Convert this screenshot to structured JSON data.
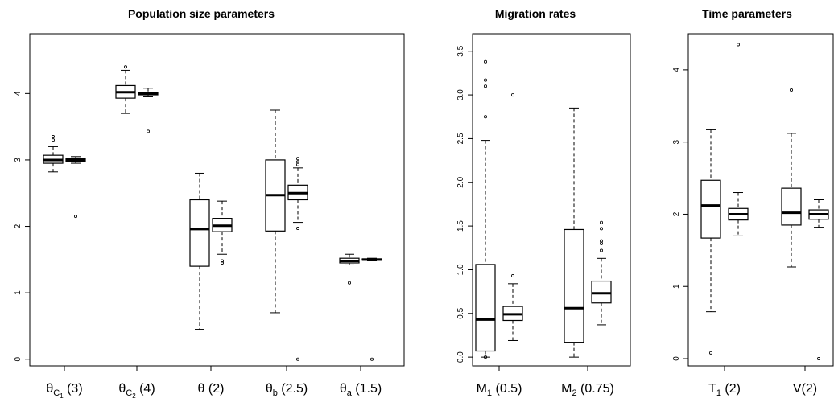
{
  "chart_data": [
    {
      "type": "boxplot",
      "title": "Population size parameters",
      "ylim": [
        -0.1,
        4.9
      ],
      "yticks": [
        0,
        1,
        2,
        3,
        4
      ],
      "grid": false,
      "legend": "none",
      "categories": [
        {
          "base": "θ",
          "sub": "C",
          "subsub": "1",
          "rest": " (3)"
        },
        {
          "base": "θ",
          "sub": "C",
          "subsub": "2",
          "rest": " (4)"
        },
        {
          "base": "θ (2)",
          "sub": "",
          "subsub": "",
          "rest": ""
        },
        {
          "base": "θ",
          "sub": "b",
          "subsub": "",
          "rest": " (2.5)"
        },
        {
          "base": "θ",
          "sub": "a",
          "subsub": "",
          "rest": " (1.5)"
        }
      ],
      "boxes": [
        {
          "group": 0,
          "q1": 2.95,
          "med": 3.0,
          "q3": 3.07,
          "lo": 2.82,
          "hi": 3.2,
          "outliers": [
            3.3,
            3.35
          ]
        },
        {
          "group": 0,
          "q1": 2.98,
          "med": 3.0,
          "q3": 3.02,
          "lo": 2.95,
          "hi": 3.05,
          "outliers": [
            2.15
          ]
        },
        {
          "group": 1,
          "q1": 3.93,
          "med": 4.02,
          "q3": 4.12,
          "lo": 3.7,
          "hi": 4.35,
          "outliers": [
            4.4
          ]
        },
        {
          "group": 1,
          "q1": 3.98,
          "med": 4.0,
          "q3": 4.02,
          "lo": 3.95,
          "hi": 4.08,
          "outliers": [
            3.43
          ]
        },
        {
          "group": 2,
          "q1": 1.4,
          "med": 1.96,
          "q3": 2.4,
          "lo": 0.45,
          "hi": 2.8,
          "outliers": []
        },
        {
          "group": 2,
          "q1": 1.92,
          "med": 2.01,
          "q3": 2.12,
          "lo": 1.58,
          "hi": 2.38,
          "outliers": [
            1.45,
            1.48
          ]
        },
        {
          "group": 3,
          "q1": 1.93,
          "med": 2.47,
          "q3": 3.0,
          "lo": 0.7,
          "hi": 3.75,
          "outliers": []
        },
        {
          "group": 3,
          "q1": 2.4,
          "med": 2.5,
          "q3": 2.62,
          "lo": 2.06,
          "hi": 2.88,
          "outliers": [
            0.0,
            1.97,
            2.93,
            2.97,
            3.02
          ]
        },
        {
          "group": 4,
          "q1": 1.45,
          "med": 1.48,
          "q3": 1.52,
          "lo": 1.42,
          "hi": 1.58,
          "outliers": [
            1.15
          ]
        },
        {
          "group": 4,
          "q1": 1.49,
          "med": 1.5,
          "q3": 1.51,
          "lo": 1.48,
          "hi": 1.52,
          "outliers": [
            0.0
          ]
        }
      ]
    },
    {
      "type": "boxplot",
      "title": "Migration rates",
      "ylim": [
        -0.1,
        3.7
      ],
      "yticks": [
        "0.0",
        "0.5",
        "1.0",
        "1.5",
        "2.0",
        "2.5",
        "3.0",
        "3.5"
      ],
      "grid": false,
      "legend": "none",
      "categories": [
        {
          "base": "M",
          "sub": "1",
          "subsub": "",
          "rest": " (0.5)"
        },
        {
          "base": "M",
          "sub": "2",
          "subsub": "",
          "rest": " (0.75)"
        }
      ],
      "boxes": [
        {
          "group": 0,
          "q1": 0.07,
          "med": 0.43,
          "q3": 1.06,
          "lo": 0.0,
          "hi": 2.48,
          "outliers": [
            0.0,
            2.75,
            3.1,
            3.17,
            3.38
          ]
        },
        {
          "group": 0,
          "q1": 0.42,
          "med": 0.49,
          "q3": 0.58,
          "lo": 0.19,
          "hi": 0.84,
          "outliers": [
            0.93,
            3.0
          ]
        },
        {
          "group": 1,
          "q1": 0.17,
          "med": 0.56,
          "q3": 1.46,
          "lo": 0.0,
          "hi": 2.85,
          "outliers": []
        },
        {
          "group": 1,
          "q1": 0.62,
          "med": 0.73,
          "q3": 0.87,
          "lo": 0.37,
          "hi": 1.13,
          "outliers": [
            1.22,
            1.3,
            1.33,
            1.47,
            1.54
          ]
        }
      ]
    },
    {
      "type": "boxplot",
      "title": "Time parameters",
      "ylim": [
        -0.1,
        4.5
      ],
      "yticks": [
        0,
        1,
        2,
        3,
        4
      ],
      "grid": false,
      "legend": "none",
      "categories": [
        {
          "base": "T",
          "sub": "1",
          "subsub": "",
          "rest": " (2)"
        },
        {
          "base": "V(2)",
          "sub": "",
          "subsub": "",
          "rest": ""
        }
      ],
      "boxes": [
        {
          "group": 0,
          "q1": 1.67,
          "med": 2.12,
          "q3": 2.47,
          "lo": 0.65,
          "hi": 3.17,
          "outliers": [
            0.08
          ]
        },
        {
          "group": 0,
          "q1": 1.92,
          "med": 2.0,
          "q3": 2.08,
          "lo": 1.7,
          "hi": 2.3,
          "outliers": [
            4.35
          ]
        },
        {
          "group": 1,
          "q1": 1.85,
          "med": 2.02,
          "q3": 2.36,
          "lo": 1.27,
          "hi": 3.12,
          "outliers": [
            3.72
          ]
        },
        {
          "group": 1,
          "q1": 1.93,
          "med": 2.0,
          "q3": 2.06,
          "lo": 1.82,
          "hi": 2.2,
          "outliers": [
            0.0
          ]
        }
      ]
    }
  ]
}
